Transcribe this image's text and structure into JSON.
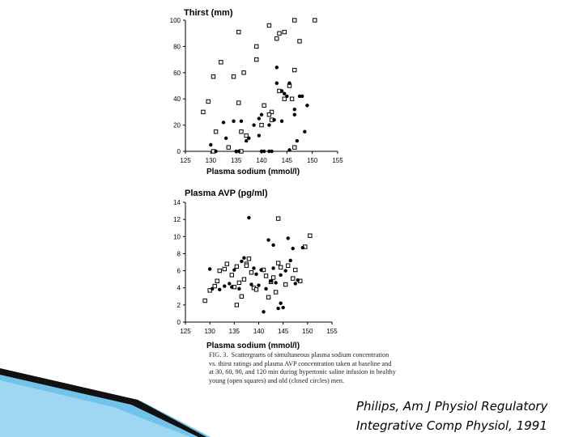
{
  "colors": {
    "ink": "#000000",
    "decor_dark": "#111111",
    "decor_light": "#59b8e6"
  },
  "chart_data": [
    {
      "type": "scatter",
      "title": "Thirst (mm)",
      "xlabel": "Plasma sodium (mmol/l)",
      "ylabel": "",
      "xlim": [
        125,
        155
      ],
      "ylim": [
        0,
        100
      ],
      "xticks": [
        125,
        130,
        135,
        140,
        145,
        150,
        155
      ],
      "yticks": [
        0,
        20,
        40,
        60,
        80,
        100
      ],
      "grid": false,
      "series": [
        {
          "marker": "open-square",
          "points": [
            [
              128.5,
              30
            ],
            [
              129.5,
              38
            ],
            [
              130.5,
              57
            ],
            [
              131,
              15
            ],
            [
              132,
              68
            ],
            [
              134.5,
              57
            ],
            [
              135.5,
              91
            ],
            [
              135.5,
              37
            ],
            [
              136,
              15
            ],
            [
              136.5,
              60
            ],
            [
              137,
              12
            ],
            [
              139,
              80
            ],
            [
              139,
              70
            ],
            [
              140,
              20
            ],
            [
              140.5,
              35
            ],
            [
              141.5,
              96
            ],
            [
              142,
              30
            ],
            [
              143,
              86
            ],
            [
              143.5,
              90
            ],
            [
              144.5,
              91
            ],
            [
              143.5,
              46
            ],
            [
              144.5,
              40
            ],
            [
              145.5,
              50
            ],
            [
              146,
              40
            ],
            [
              146.5,
              62
            ],
            [
              147.5,
              84
            ],
            [
              146.5,
              100
            ],
            [
              150.5,
              100
            ],
            [
              133.5,
              3
            ],
            [
              136,
              0
            ],
            [
              130.5,
              0
            ],
            [
              146.5,
              3
            ],
            [
              141.5,
              28
            ],
            [
              142,
              24
            ]
          ]
        },
        {
          "marker": "filled-circle",
          "points": [
            [
              130,
              5
            ],
            [
              131,
              0
            ],
            [
              132.5,
              22
            ],
            [
              133,
              10
            ],
            [
              134.5,
              23
            ],
            [
              135,
              0
            ],
            [
              135.5,
              0
            ],
            [
              136,
              23
            ],
            [
              137,
              8
            ],
            [
              137.5,
              10
            ],
            [
              138.5,
              20
            ],
            [
              139.5,
              25
            ],
            [
              139.5,
              12
            ],
            [
              140,
              0
            ],
            [
              140.5,
              0
            ],
            [
              141.5,
              0
            ],
            [
              142,
              0
            ],
            [
              143,
              52
            ],
            [
              143,
              64
            ],
            [
              144,
              46
            ],
            [
              144.5,
              44
            ],
            [
              145,
              42
            ],
            [
              145.5,
              52
            ],
            [
              145.5,
              1
            ],
            [
              146.5,
              32
            ],
            [
              147.5,
              42
            ],
            [
              148,
              42
            ],
            [
              148.5,
              15
            ],
            [
              149,
              35
            ],
            [
              147,
              8
            ],
            [
              141.5,
              20
            ],
            [
              142.5,
              24
            ],
            [
              146.5,
              28
            ],
            [
              144,
              23
            ],
            [
              140,
              28
            ]
          ]
        }
      ]
    },
    {
      "type": "scatter",
      "title": "Plasma AVP (pg/ml)",
      "xlabel": "Plasma sodium (mmol/l)",
      "ylabel": "",
      "xlim": [
        125,
        155
      ],
      "ylim": [
        0,
        14
      ],
      "xticks": [
        125,
        130,
        135,
        140,
        145,
        150,
        155
      ],
      "yticks": [
        0,
        2,
        4,
        6,
        8,
        10,
        12,
        14
      ],
      "grid": false,
      "series": [
        {
          "marker": "open-square",
          "points": [
            [
              129,
              2.5
            ],
            [
              130,
              3.7
            ],
            [
              131,
              4.2
            ],
            [
              131.5,
              4.8
            ],
            [
              132,
              6
            ],
            [
              133,
              6.2
            ],
            [
              133.5,
              6.8
            ],
            [
              134.5,
              5.5
            ],
            [
              135,
              4.1
            ],
            [
              135.5,
              2
            ],
            [
              135.5,
              6.5
            ],
            [
              136,
              4.6
            ],
            [
              136.5,
              3
            ],
            [
              137,
              5
            ],
            [
              137.5,
              6.8
            ],
            [
              138,
              7.4
            ],
            [
              138.5,
              5.8
            ],
            [
              139,
              4
            ],
            [
              139.5,
              3.8
            ],
            [
              141,
              6.1
            ],
            [
              141.5,
              5.4
            ],
            [
              142,
              2.9
            ],
            [
              142.5,
              4.7
            ],
            [
              143,
              5.2
            ],
            [
              143.5,
              3.5
            ],
            [
              144,
              6.9
            ],
            [
              144,
              12.1
            ],
            [
              145.5,
              4.4
            ],
            [
              146,
              6.6
            ],
            [
              147,
              5.1
            ],
            [
              147.5,
              6.1
            ],
            [
              148.5,
              4.8
            ],
            [
              149.5,
              8.8
            ],
            [
              150.5,
              10.1
            ],
            [
              144.5,
              6.4
            ],
            [
              137.5,
              6.6
            ]
          ]
        },
        {
          "marker": "filled-circle",
          "points": [
            [
              130,
              6.2
            ],
            [
              130.5,
              3.9
            ],
            [
              132,
              3.8
            ],
            [
              133,
              4.2
            ],
            [
              134,
              4.5
            ],
            [
              134.5,
              4.1
            ],
            [
              135,
              6.1
            ],
            [
              136,
              3.9
            ],
            [
              136.5,
              7.1
            ],
            [
              137,
              7.5
            ],
            [
              138,
              12.2
            ],
            [
              138.5,
              4.4
            ],
            [
              139,
              6.3
            ],
            [
              140,
              4.3
            ],
            [
              140.5,
              6.1
            ],
            [
              141,
              1.2
            ],
            [
              141.5,
              3.9
            ],
            [
              142,
              9.6
            ],
            [
              142.5,
              4.8
            ],
            [
              143,
              9
            ],
            [
              143.5,
              4.6
            ],
            [
              144,
              1.6
            ],
            [
              144.5,
              2.2
            ],
            [
              145,
              1.7
            ],
            [
              145.5,
              6
            ],
            [
              146,
              9.8
            ],
            [
              147,
              8.6
            ],
            [
              147.5,
              4.5
            ],
            [
              148,
              4.9
            ],
            [
              149,
              8.7
            ],
            [
              139.5,
              5.6
            ],
            [
              143,
              6.3
            ],
            [
              146.5,
              7.2
            ],
            [
              144.5,
              5.5
            ]
          ]
        }
      ]
    }
  ],
  "caption": {
    "fig_label": "FIG. 3.",
    "text": "Scattergrams of simultaneous plasma sodium concentration vs. thirst ratings and plasma AVP concentration taken at baseline and at 30, 60, 90, and 120 min during hypertonic saline infusion in healthy young (open squares) and old (closed circles) men."
  },
  "citation": {
    "line1": "Philips, Am J Physiol Regulatory",
    "line2": "Integrative Comp Physiol, 1991"
  }
}
